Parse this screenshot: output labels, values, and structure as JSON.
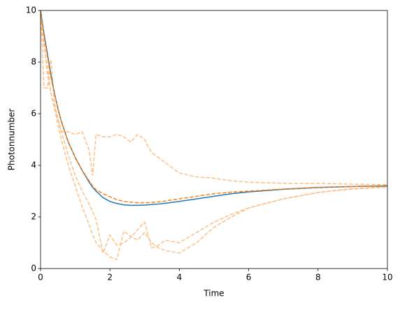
{
  "chart_data": {
    "type": "line",
    "xlabel": "Time",
    "ylabel": "Photonnumber",
    "x": [
      0,
      0.1,
      0.2,
      0.3,
      0.4,
      0.5,
      0.6,
      0.8,
      1,
      1.2,
      1.4,
      1.5,
      1.6,
      1.8,
      2,
      2.2,
      2.4,
      2.6,
      2.8,
      3,
      3.2,
      3.4,
      3.6,
      4,
      4.5,
      5,
      5.5,
      6,
      7,
      8,
      9,
      10
    ],
    "series": [
      {
        "color": "#fdbf85",
        "linestyle": "dashed",
        "values": [
          10,
          7.0,
          7.0,
          8.1,
          6.4,
          5.8,
          5.3,
          5.3,
          5.2,
          5.3,
          4.6,
          3.6,
          5.2,
          5.1,
          5.1,
          5.2,
          5.1,
          4.9,
          5.2,
          5.0,
          4.5,
          4.3,
          4.1,
          3.7,
          3.55,
          3.5,
          3.4,
          3.35,
          3.3,
          3.3,
          3.27,
          3.25
        ]
      },
      {
        "color": "#fdbf85",
        "linestyle": "dashed",
        "values": [
          10,
          8.8,
          7.5,
          6.8,
          6.3,
          5.8,
          5.3,
          4.4,
          3.6,
          3.0,
          2.5,
          2.2,
          1.9,
          0.6,
          1.3,
          0.9,
          1.0,
          1.2,
          1.5,
          1.8,
          0.8,
          0.9,
          1.1,
          1.0,
          1.4,
          1.8,
          2.1,
          2.35,
          2.7,
          2.95,
          3.08,
          3.15
        ]
      },
      {
        "color": "#fdbf85",
        "linestyle": "dashed",
        "values": [
          10,
          8.6,
          7.8,
          6.8,
          6.2,
          5.6,
          5.0,
          4.0,
          3.2,
          2.4,
          1.7,
          1.3,
          1.0,
          0.7,
          0.45,
          0.35,
          1.45,
          1.25,
          1.1,
          1.4,
          1.0,
          0.8,
          0.7,
          0.6,
          1.0,
          1.6,
          2.0,
          2.35,
          2.7,
          2.95,
          3.1,
          3.17
        ]
      },
      {
        "color": "#1f77b4",
        "linestyle": "solid",
        "values": [
          10,
          9.1,
          8.3,
          7.5,
          6.8,
          6.2,
          5.7,
          4.9,
          4.3,
          3.8,
          3.35,
          3.15,
          3.0,
          2.75,
          2.6,
          2.52,
          2.47,
          2.45,
          2.45,
          2.46,
          2.48,
          2.5,
          2.53,
          2.6,
          2.7,
          2.8,
          2.9,
          2.97,
          3.07,
          3.14,
          3.18,
          3.2
        ]
      },
      {
        "color": "#ff7f0e",
        "linestyle": "dashed",
        "values": [
          10,
          9.0,
          8.2,
          7.4,
          6.8,
          6.2,
          5.7,
          4.9,
          4.3,
          3.8,
          3.4,
          3.2,
          3.05,
          2.9,
          2.78,
          2.67,
          2.6,
          2.57,
          2.55,
          2.55,
          2.56,
          2.58,
          2.62,
          2.7,
          2.8,
          2.9,
          2.96,
          3.0,
          3.08,
          3.15,
          3.18,
          3.22
        ]
      }
    ],
    "xlim": [
      0,
      10
    ],
    "xticks": [
      0,
      2,
      4,
      6,
      8,
      10
    ],
    "ylim": [
      0,
      10
    ],
    "yticks": [
      0,
      2,
      4,
      6,
      8,
      10
    ],
    "grid": false
  }
}
